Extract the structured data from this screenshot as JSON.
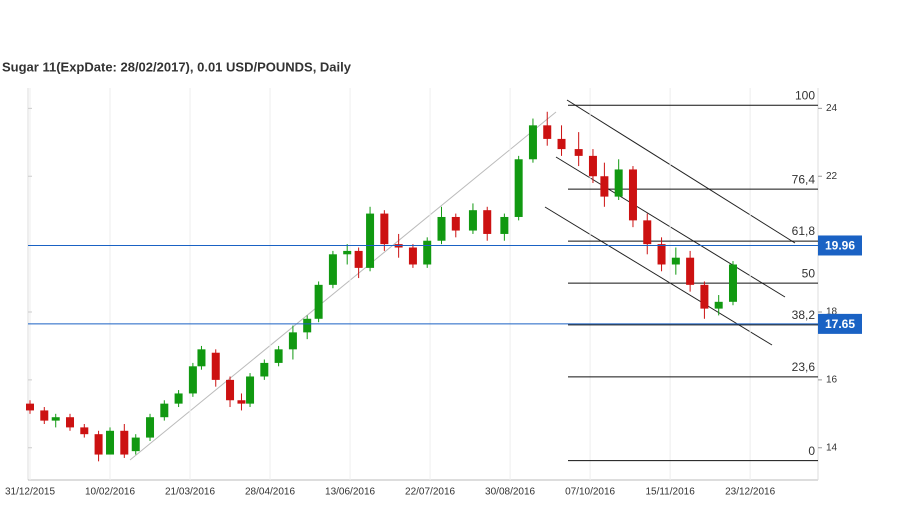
{
  "chart_data": {
    "type": "candlestick",
    "title": "Sugar 11(ExpDate: 28/02/2017), 0.01 USD/POUNDS, Daily",
    "x": [
      0,
      5,
      9,
      14,
      19,
      24,
      28,
      33,
      37,
      42,
      47,
      52,
      57,
      60,
      65,
      70,
      74,
      77,
      82,
      87,
      92,
      97,
      101,
      106,
      111,
      115,
      119,
      124,
      129,
      134,
      139,
      144,
      149,
      155,
      160,
      166,
      171,
      176,
      181,
      186,
      192,
      197,
      201,
      206,
      211,
      216,
      221,
      226,
      231,
      236,
      241,
      246
    ],
    "open": [
      15.3,
      15.1,
      14.8,
      14.9,
      14.6,
      14.4,
      13.8,
      14.5,
      13.9,
      14.3,
      14.9,
      15.3,
      15.6,
      16.4,
      16.8,
      16.0,
      15.4,
      15.3,
      16.1,
      16.5,
      16.9,
      17.4,
      17.8,
      18.8,
      19.7,
      19.8,
      19.3,
      20.9,
      20.0,
      19.9,
      19.4,
      20.1,
      20.8,
      20.4,
      21.0,
      20.3,
      20.8,
      22.5,
      23.5,
      23.1,
      22.8,
      22.6,
      22.0,
      21.4,
      22.2,
      20.7,
      20.0,
      19.4,
      19.6,
      18.8,
      18.1,
      18.3
    ],
    "high": [
      15.4,
      15.2,
      15.0,
      15.0,
      14.7,
      14.5,
      14.6,
      14.7,
      14.4,
      15.0,
      15.4,
      15.7,
      16.5,
      17.0,
      16.9,
      16.1,
      15.6,
      16.2,
      16.6,
      17.0,
      17.6,
      17.9,
      18.9,
      19.8,
      20.0,
      19.9,
      21.1,
      21.0,
      20.3,
      20.0,
      20.2,
      21.1,
      20.9,
      21.2,
      21.1,
      20.9,
      22.6,
      23.7,
      23.9,
      23.5,
      23.3,
      22.8,
      22.4,
      22.5,
      22.3,
      20.9,
      20.2,
      19.9,
      19.8,
      18.9,
      18.5,
      19.5
    ],
    "low": [
      15.0,
      14.7,
      14.6,
      14.5,
      14.3,
      13.6,
      13.8,
      13.7,
      13.8,
      14.2,
      14.8,
      15.2,
      15.5,
      16.3,
      15.8,
      15.2,
      15.1,
      15.2,
      16.0,
      16.4,
      16.6,
      17.2,
      17.7,
      18.7,
      19.4,
      19.0,
      19.2,
      19.8,
      19.6,
      19.3,
      19.3,
      20.0,
      20.2,
      20.3,
      20.1,
      20.1,
      20.7,
      22.4,
      22.9,
      22.6,
      22.3,
      21.8,
      21.1,
      21.3,
      20.5,
      19.7,
      19.2,
      19.1,
      18.6,
      17.8,
      17.9,
      18.2
    ],
    "close": [
      15.1,
      14.8,
      14.9,
      14.6,
      14.4,
      13.8,
      14.5,
      13.8,
      14.3,
      14.9,
      15.3,
      15.6,
      16.4,
      16.9,
      16.0,
      15.4,
      15.3,
      16.1,
      16.5,
      16.9,
      17.4,
      17.8,
      18.8,
      19.7,
      19.8,
      19.3,
      20.9,
      20.0,
      19.9,
      19.4,
      20.1,
      20.8,
      20.4,
      21.0,
      20.3,
      20.8,
      22.5,
      23.5,
      23.1,
      22.8,
      22.6,
      22.0,
      21.4,
      22.2,
      20.7,
      20.0,
      19.4,
      19.6,
      18.8,
      18.1,
      18.3,
      19.4
    ],
    "up_color": "#119911",
    "down_color": "#cc1111",
    "xlim": [
      -0.7,
      274.7
    ],
    "xticks": [
      {
        "value": 0,
        "label": "31/12/2015"
      },
      {
        "value": 28,
        "label": "10/02/2016"
      },
      {
        "value": 56,
        "label": "21/03/2016"
      },
      {
        "value": 84,
        "label": "28/04/2016"
      },
      {
        "value": 112,
        "label": "13/06/2016"
      },
      {
        "value": 140,
        "label": "22/07/2016"
      },
      {
        "value": 168,
        "label": "30/08/2016"
      },
      {
        "value": 196,
        "label": "07/10/2016"
      },
      {
        "value": 224,
        "label": "15/11/2016"
      },
      {
        "value": 252,
        "label": "23/12/2016"
      }
    ],
    "ylim": [
      13.05,
      24.6
    ],
    "yticks": [
      14,
      16,
      18,
      22,
      24
    ],
    "grid": true,
    "fib_levels": [
      {
        "label": "100",
        "price": 24.09
      },
      {
        "label": "76,4",
        "price": 21.62
      },
      {
        "label": "61,8",
        "price": 20.09
      },
      {
        "label": "50",
        "price": 18.85
      },
      {
        "label": "38,2",
        "price": 17.62
      },
      {
        "label": "23,6",
        "price": 16.09
      },
      {
        "label": "0",
        "price": 13.62
      }
    ],
    "price_lines": [
      19.96,
      17.65
    ],
    "price_line_color": "#1a62c4"
  }
}
